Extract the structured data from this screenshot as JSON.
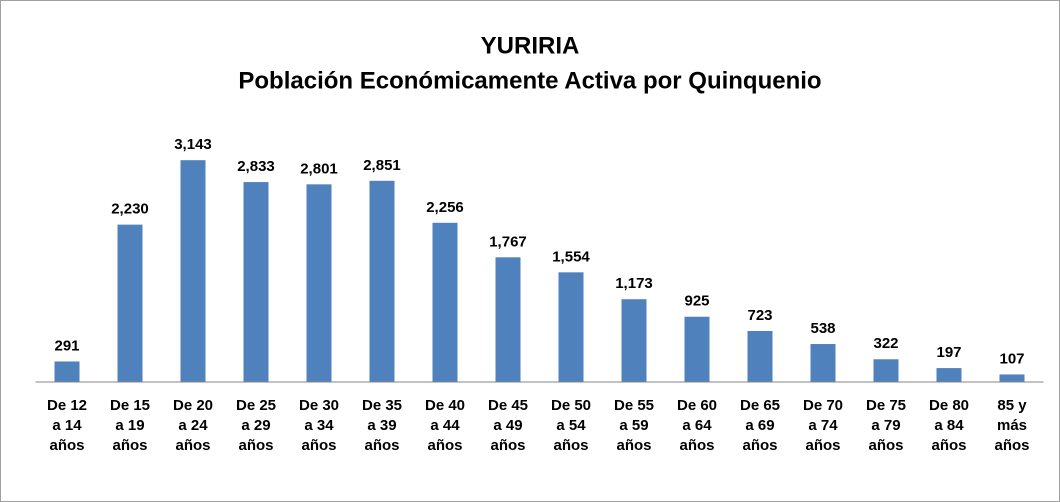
{
  "chart_data": {
    "type": "bar",
    "title": "YURIRIA",
    "subtitle": "Población Económicamente Activa por Quinquenio",
    "categories": [
      "De 12\na 14\naños",
      "De 15\na 19\naños",
      "De 20\na 24\naños",
      "De 25\na 29\naños",
      "De 30\na 34\naños",
      "De 35\na 39\naños",
      "De 40\na 44\naños",
      "De 45\na 49\naños",
      "De 50\na 54\naños",
      "De 55\na 59\naños",
      "De 60\na 64\naños",
      "De 65\na 69\naños",
      "De 70\na 74\naños",
      "De 75\na 79\naños",
      "De 80\na 84\naños",
      "85 y\nmás\naños"
    ],
    "values": [
      291,
      2230,
      3143,
      2833,
      2801,
      2851,
      2256,
      1767,
      1554,
      1173,
      925,
      723,
      538,
      322,
      197,
      107
    ],
    "value_labels": [
      "291",
      "2,230",
      "3,143",
      "2,833",
      "2,801",
      "2,851",
      "2,256",
      "1,767",
      "1,554",
      "1,173",
      "925",
      "723",
      "538",
      "322",
      "197",
      "107"
    ],
    "color": "#4f81bd",
    "ylim": [
      0,
      3500
    ]
  }
}
